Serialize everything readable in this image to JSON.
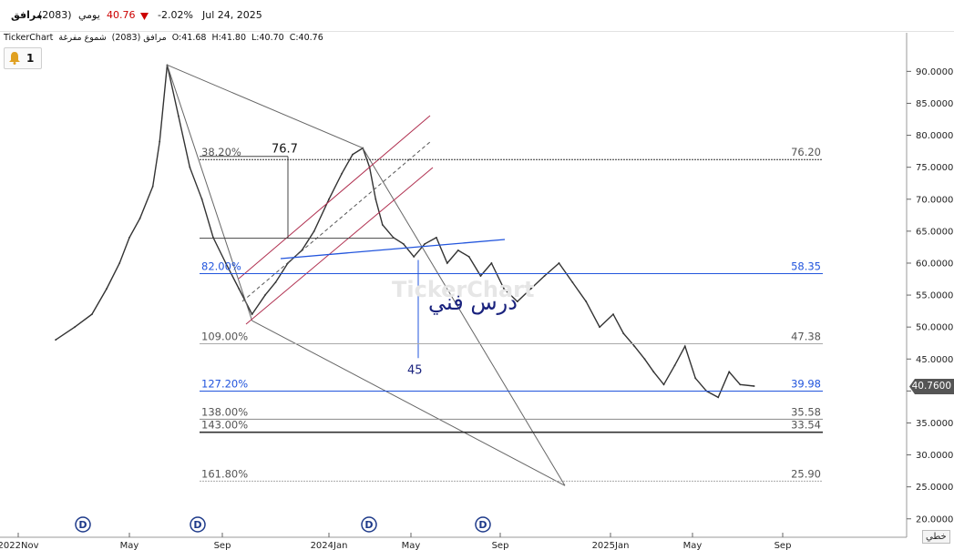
{
  "header": {
    "symbol_name": "مرافق",
    "symbol_code": "(2083)",
    "period": "يومي",
    "price": "40.76",
    "change": "-2.02%",
    "date": "Jul 24, 2025",
    "down_color": "#cc0000"
  },
  "info": {
    "source": "TickerChart",
    "symbol": "مرافق (2083)",
    "chart_style": "شموع مفرغة",
    "open": "O:41.68",
    "high": "H:41.80",
    "low": "L:40.70",
    "close": "C:40.76"
  },
  "alerts": {
    "icon": "bell-icon",
    "count": "1"
  },
  "watermark": "TickerChart",
  "current_price_label": "40.7600",
  "scale_button": "خطي",
  "chart_data": {
    "type": "line",
    "title": "",
    "xlabel": "",
    "ylabel": "",
    "ylim": [
      19,
      93
    ],
    "y_ticks": [
      "90.0000",
      "85.0000",
      "80.0000",
      "75.0000",
      "70.0000",
      "65.0000",
      "60.0000",
      "55.0000",
      "50.0000",
      "45.0000",
      "40.0000",
      "35.0000",
      "30.0000",
      "25.0000",
      "20.0000"
    ],
    "x_ticks": [
      "2022Nov",
      "May",
      "Sep",
      "2024Jan",
      "May",
      "Sep",
      "2025Jan",
      "May",
      "Sep"
    ],
    "series": [
      {
        "color": "#333333",
        "x": [
          "2023-01-01",
          "2023-02-01",
          "2023-03-01",
          "2023-03-25",
          "2023-04-15",
          "2023-05-01",
          "2023-05-15",
          "2023-06-01",
          "2023-06-10",
          "2023-06-20",
          "2023-07-05",
          "2023-07-20",
          "2023-08-05",
          "2023-08-20",
          "2023-09-05",
          "2023-09-20",
          "2023-10-05",
          "2023-10-20",
          "2023-11-01",
          "2023-11-15",
          "2023-12-01",
          "2023-12-15",
          "2024-01-01",
          "2024-01-20",
          "2024-02-05",
          "2024-02-20",
          "2024-03-01",
          "2024-03-10",
          "2024-03-20",
          "2024-04-05",
          "2024-04-20",
          "2024-05-05",
          "2024-05-20",
          "2024-06-05",
          "2024-06-20",
          "2024-07-05",
          "2024-07-20",
          "2024-08-05",
          "2024-08-20",
          "2024-09-05",
          "2024-09-20",
          "2024-10-05",
          "2024-10-20",
          "2024-11-05",
          "2024-11-20",
          "2024-12-05",
          "2024-12-20",
          "2025-01-05",
          "2025-01-20",
          "2025-02-05",
          "2025-02-20",
          "2025-03-05",
          "2025-03-20",
          "2025-04-05",
          "2025-04-20",
          "2025-05-05",
          "2025-05-20",
          "2025-06-05",
          "2025-06-20",
          "2025-07-05",
          "2025-07-24"
        ],
        "values": [
          48,
          50,
          52,
          56,
          60,
          64,
          67,
          72,
          79,
          91,
          83,
          75,
          70,
          64,
          60,
          56,
          52,
          55,
          57,
          60,
          62,
          65,
          70,
          74,
          77,
          78,
          75,
          70,
          66,
          64,
          63,
          61,
          63,
          64,
          60,
          62,
          61,
          58,
          60,
          56,
          54,
          56,
          58,
          60,
          57,
          54,
          50,
          52,
          49,
          47,
          45,
          43,
          41,
          44,
          47,
          42,
          40,
          39,
          43,
          41,
          40.76
        ]
      }
    ],
    "fibonacci": [
      {
        "label": "38.20%",
        "value": 76.2
      },
      {
        "label": "82.00%",
        "value": 58.35
      },
      {
        "label": "109.00%",
        "value": 47.38
      },
      {
        "label": "127.20%",
        "value": 39.98
      },
      {
        "label": "138.00%",
        "value": 35.58
      },
      {
        "label": "143.00%",
        "value": 33.54
      },
      {
        "label": "161.80%",
        "value": 25.9
      }
    ],
    "annotations": [
      {
        "text": "76.7",
        "value": 76.7
      },
      {
        "text": "45",
        "value": 45
      },
      {
        "text": "درس فني"
      }
    ],
    "dividend_markers": [
      "D",
      "D",
      "D",
      "D"
    ],
    "current_price": 40.76
  }
}
